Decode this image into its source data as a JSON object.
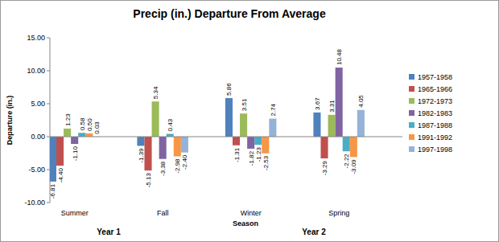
{
  "chart_data": {
    "type": "bar",
    "title": "Precip (in.) Departure From Average",
    "x_label": "Season",
    "y_label": "Departure (in.)",
    "annotations": [
      "Year 1",
      "Year 2"
    ],
    "categories": [
      "Summer",
      "Fall",
      "Winter",
      "Spring"
    ],
    "series": [
      {
        "name": "1957-1958",
        "color": "#4f81bd",
        "values": [
          -6.81,
          -1.39,
          5.86,
          3.67
        ],
        "value_labels": [
          "-6.81",
          "-1.39",
          "5.86",
          "3.67"
        ]
      },
      {
        "name": "1965-1966",
        "color": "#c0504d",
        "values": [
          -4.4,
          -5.13,
          -1.31,
          -3.29
        ],
        "value_labels": [
          "-4.40",
          "-5.13",
          "-1.31",
          "-3.29"
        ]
      },
      {
        "name": "1972-1973",
        "color": "#9bbb59",
        "values": [
          1.23,
          5.34,
          3.51,
          3.31
        ],
        "value_labels": [
          "1.23",
          "5.34",
          "3.51",
          "3.31"
        ]
      },
      {
        "name": "1982-1983",
        "color": "#8064a2",
        "values": [
          -1.1,
          -3.38,
          -1.82,
          10.48
        ],
        "value_labels": [
          "-1.10",
          "-3.38",
          "-1.82",
          "10.48"
        ]
      },
      {
        "name": "1987-1988",
        "color": "#4bacc6",
        "values": [
          0.58,
          0.43,
          -1.23,
          -2.22
        ],
        "value_labels": [
          "0.58",
          "0.43",
          "-1.23",
          "-2.22"
        ]
      },
      {
        "name": "1991-1992",
        "color": "#f79646",
        "values": [
          0.5,
          -2.98,
          -2.53,
          -3.09
        ],
        "value_labels": [
          "0.50",
          "-2.98",
          "-2.53",
          "-3.09"
        ]
      },
      {
        "name": "1997-1998",
        "color": "#95b3d7",
        "values": [
          0.03,
          -2.4,
          2.74,
          4.05
        ],
        "value_labels": [
          "0.03",
          "-2.40",
          "2.74",
          "4.05"
        ]
      }
    ],
    "ylim": [
      -10,
      15
    ],
    "yticks": [
      {
        "value": -10,
        "label": "-10.00"
      },
      {
        "value": -5,
        "label": "-5.00"
      },
      {
        "value": 0,
        "label": "0.00"
      },
      {
        "value": 5,
        "label": "5.00"
      },
      {
        "value": 10,
        "label": "10.00"
      },
      {
        "value": 15,
        "label": "15.00"
      }
    ],
    "grid": false,
    "legend": "right",
    "data_labels": true
  }
}
